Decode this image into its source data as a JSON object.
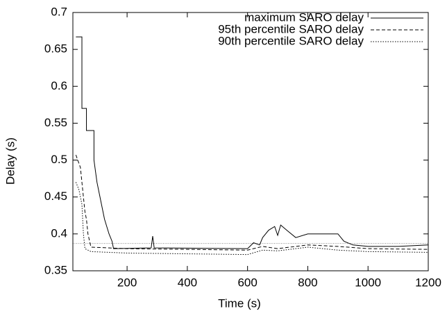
{
  "chart_data": {
    "type": "line",
    "x_label": "Time (s)",
    "y_label": "Delay (s)",
    "xlim": [
      20,
      1200
    ],
    "ylim": [
      0.35,
      0.7
    ],
    "xticks": [
      200,
      400,
      600,
      800,
      1000,
      1200
    ],
    "yticks": [
      0.35,
      0.4,
      0.45,
      0.5,
      0.55,
      0.6,
      0.65,
      0.7
    ],
    "legend": "top-right",
    "hline": 0.387,
    "hline_color": "#888888",
    "series": [
      {
        "name": "maximum SARO delay",
        "color": "#000000",
        "dash": "none",
        "x": [
          30,
          50,
          50,
          65,
          65,
          90,
          90,
          100,
          110,
          125,
          140,
          150,
          155,
          280,
          285,
          290,
          600,
          620,
          640,
          650,
          670,
          690,
          700,
          710,
          730,
          760,
          800,
          900,
          920,
          950,
          1000,
          1100,
          1200
        ],
        "values": [
          0.667,
          0.667,
          0.57,
          0.57,
          0.54,
          0.54,
          0.5,
          0.47,
          0.45,
          0.42,
          0.4,
          0.39,
          0.38,
          0.381,
          0.397,
          0.381,
          0.38,
          0.388,
          0.385,
          0.395,
          0.405,
          0.41,
          0.398,
          0.412,
          0.405,
          0.395,
          0.4,
          0.4,
          0.39,
          0.385,
          0.383,
          0.383,
          0.385
        ]
      },
      {
        "name": "95th percentile SARO delay",
        "color": "#000000",
        "dash": "5,3",
        "x": [
          30,
          45,
          55,
          60,
          65,
          70,
          80,
          200,
          600,
          650,
          700,
          800,
          900,
          1000,
          1200
        ],
        "values": [
          0.507,
          0.49,
          0.45,
          0.43,
          0.42,
          0.4,
          0.382,
          0.38,
          0.378,
          0.383,
          0.38,
          0.385,
          0.383,
          0.38,
          0.379
        ]
      },
      {
        "name": "90th percentile SARO delay",
        "color": "#000000",
        "dash": "1.5,2",
        "x": [
          30,
          40,
          50,
          55,
          60,
          80,
          200,
          600,
          650,
          700,
          800,
          900,
          1000,
          1200
        ],
        "values": [
          0.47,
          0.46,
          0.44,
          0.4,
          0.38,
          0.376,
          0.374,
          0.372,
          0.378,
          0.377,
          0.382,
          0.378,
          0.376,
          0.375
        ]
      }
    ]
  }
}
